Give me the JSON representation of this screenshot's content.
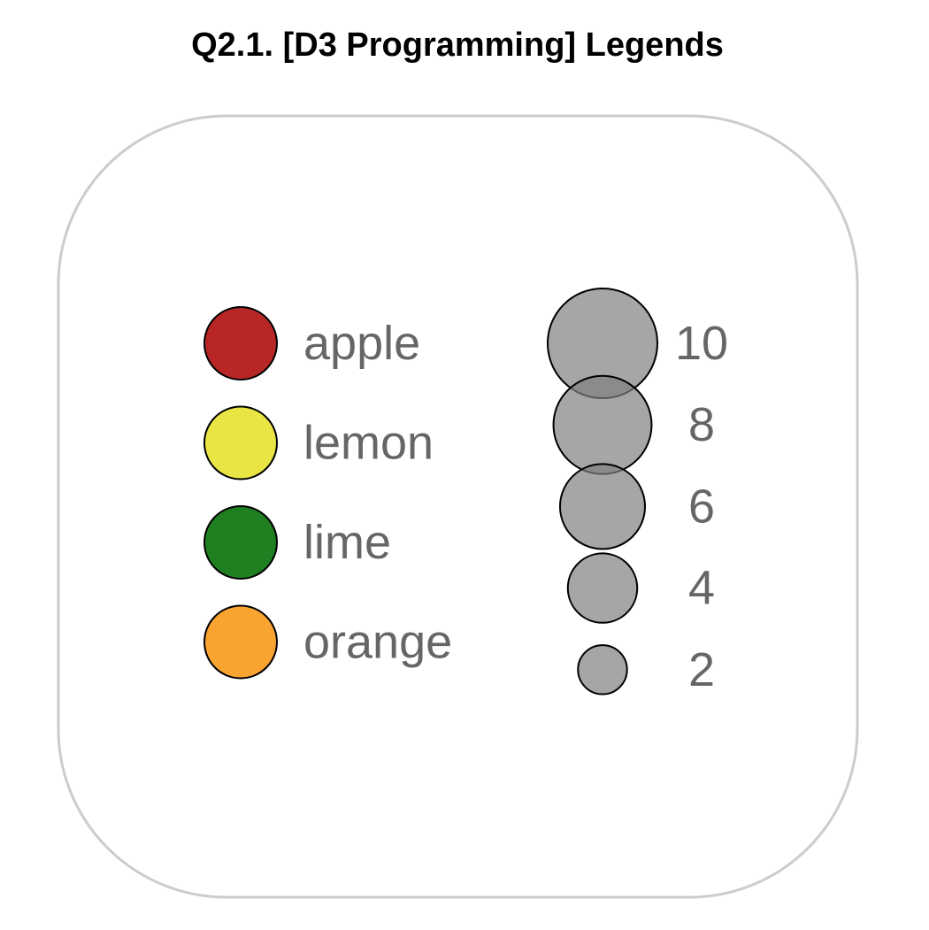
{
  "title": "Q2.1. [D3 Programming] Legends",
  "chart_data": [
    {
      "type": "legend-categorical",
      "entries": [
        {
          "label": "apple",
          "color": "#b82626"
        },
        {
          "label": "lemon",
          "color": "#e9e545"
        },
        {
          "label": "lime",
          "color": "#207f21"
        },
        {
          "label": "orange",
          "color": "#f9a331"
        }
      ]
    },
    {
      "type": "legend-size",
      "entries": [
        {
          "label": "10",
          "value": 10
        },
        {
          "label": "8",
          "value": 8
        },
        {
          "label": "6",
          "value": 6
        },
        {
          "label": "4",
          "value": 4
        },
        {
          "label": "2",
          "value": 2
        }
      ],
      "symbol_color": "#808080"
    }
  ]
}
